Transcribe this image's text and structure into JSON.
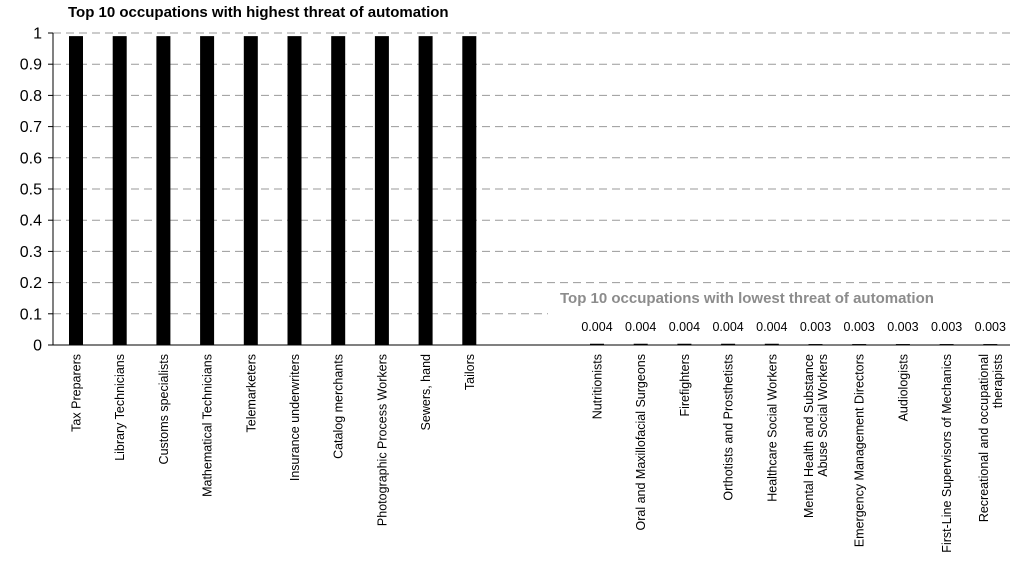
{
  "chart_data": {
    "type": "bar",
    "ylim": [
      0,
      1
    ],
    "yticks": [
      "0",
      "0.1",
      "0.2",
      "0.3",
      "0.4",
      "0.5",
      "0.6",
      "0.7",
      "0.8",
      "0.9",
      "1"
    ],
    "grid": true,
    "groups": [
      {
        "title": "Top 10 occupations with highest threat of automation",
        "categories": [
          [
            "Tax Preparers"
          ],
          [
            "Library Technicians"
          ],
          [
            "Customs specialists"
          ],
          [
            "Mathematical Technicians"
          ],
          [
            "Telemarketers"
          ],
          [
            "Insurance underwriters"
          ],
          [
            "Catalog merchants"
          ],
          [
            "Photographic Process Workers"
          ],
          [
            "Sewers, hand"
          ],
          [
            "Tailors"
          ]
        ],
        "values": [
          0.99,
          0.99,
          0.99,
          0.99,
          0.99,
          0.99,
          0.99,
          0.99,
          0.99,
          0.99
        ],
        "data_labels": []
      },
      {
        "title": "Top 10 occupations with lowest threat of automation",
        "categories": [
          [
            "Nutritionists"
          ],
          [
            "Oral and Maxillofacial Surgeons"
          ],
          [
            "Firefighters"
          ],
          [
            "Orthotists and Prosthetists"
          ],
          [
            "Healthcare Social Workers"
          ],
          [
            "Mental Health and Substance",
            "Abuse Social Workers"
          ],
          [
            "Emergency Management Directors"
          ],
          [
            "Audiologists"
          ],
          [
            "First-Line Supervisors of Mechanics"
          ],
          [
            "Recreational and occupational",
            "therapists"
          ]
        ],
        "values": [
          0.004,
          0.004,
          0.004,
          0.004,
          0.004,
          0.003,
          0.003,
          0.003,
          0.003,
          0.003
        ],
        "data_labels": [
          "0.004",
          "0.004",
          "0.004",
          "0.004",
          "0.004",
          "0.003",
          "0.003",
          "0.003",
          "0.003",
          "0.003"
        ]
      }
    ]
  }
}
